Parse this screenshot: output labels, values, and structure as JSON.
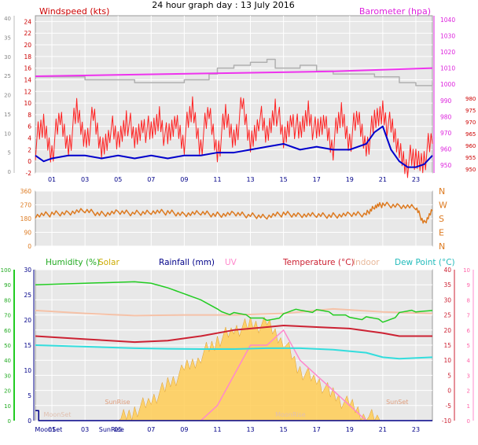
{
  "page": {
    "title": "24 hour graph day : 13 July 2016"
  },
  "colors": {
    "wind": "#ff2020",
    "gust": "#b0b0b0",
    "avgwind": "#0000cc",
    "baro": "#ee33ee",
    "direction": "#dd7a20",
    "humidity": "#22cc22",
    "solar": "#ffcc55",
    "rainfall": "#000088",
    "uv": "#ff88cc",
    "temperature": "#cc2233",
    "indoor": "#f5c2a8",
    "dewpoint": "#33dddd"
  },
  "x_ticks": [
    "01",
    "03",
    "05",
    "07",
    "09",
    "11",
    "13",
    "15",
    "17",
    "19",
    "21",
    "23"
  ],
  "chart_data": [
    {
      "type": "line",
      "panel": "wind",
      "labels": {
        "left": "Windspeed (kts)",
        "right": "Barometer (hpa)"
      },
      "left_ticks_red": [
        "-2",
        "0",
        "2",
        "4",
        "6",
        "8",
        "10",
        "12",
        "14",
        "16",
        "18",
        "20",
        "22",
        "24"
      ],
      "left_ticks_gray": [
        "0",
        "5",
        "10",
        "15",
        "20",
        "25",
        "30",
        "35",
        "40"
      ],
      "right_ticks": [
        "950",
        "960",
        "970",
        "980",
        "990",
        "1000",
        "1010",
        "1020",
        "1030",
        "1040"
      ],
      "right_ticks_red": [
        "950",
        "955",
        "960",
        "965",
        "970",
        "975",
        "980"
      ],
      "x_range": [
        0,
        24
      ],
      "ylim": [
        -2,
        25
      ],
      "series": [
        {
          "key": "gust",
          "hours": [
            0,
            3,
            6,
            9,
            10.5,
            11,
            12,
            13,
            14,
            14.5,
            15.5,
            16,
            17,
            18,
            19.5,
            20.5,
            22,
            23,
            24
          ],
          "values": [
            14.5,
            14,
            13.5,
            14,
            15,
            16,
            16.5,
            17,
            17.5,
            16,
            16,
            16.5,
            15.5,
            15,
            15,
            14.5,
            13.5,
            13,
            13.5
          ]
        },
        {
          "key": "wind",
          "hours": [
            0,
            0.5,
            1,
            1.5,
            2,
            2.5,
            3,
            3.5,
            4,
            4.5,
            5,
            5.5,
            6,
            6.5,
            7,
            7.5,
            8,
            8.5,
            9,
            9.5,
            10,
            10.5,
            11,
            11.5,
            12,
            12.5,
            13,
            13.5,
            14,
            14.5,
            15,
            15.5,
            16,
            16.5,
            17,
            17.5,
            18,
            18.5,
            19,
            19.5,
            20,
            20.5,
            21,
            21.5,
            22,
            22.5,
            23,
            23.5,
            24
          ],
          "values": [
            3,
            6,
            2,
            7,
            3,
            8,
            4,
            7,
            2,
            6,
            3,
            8,
            3,
            7,
            4,
            8,
            3,
            7,
            4,
            9,
            3,
            8,
            2,
            7,
            4,
            9,
            3,
            8,
            4,
            10,
            3,
            8,
            4,
            9,
            4,
            7,
            3,
            8,
            4,
            7,
            3,
            6,
            9,
            5,
            2,
            0,
            0,
            1,
            3
          ]
        },
        {
          "key": "avgwind",
          "hours": [
            0,
            0.5,
            1,
            2,
            3,
            4,
            5,
            6,
            7,
            8,
            9,
            10,
            11,
            12,
            13,
            14,
            15,
            16,
            17,
            18,
            19,
            20,
            20.5,
            21,
            21.5,
            22,
            22.5,
            23,
            23.5,
            24
          ],
          "values": [
            1,
            0,
            0.5,
            1,
            1,
            0.5,
            1,
            0.5,
            1,
            0.5,
            1,
            1,
            1.5,
            1.5,
            2,
            2.5,
            3,
            2,
            2.5,
            2,
            2,
            3,
            5,
            6,
            2,
            0,
            -1,
            -1,
            -0.5,
            1
          ]
        },
        {
          "key": "baro",
          "hours": [
            0,
            6,
            12,
            18,
            24
          ],
          "values_hpa": [
            1005,
            1006,
            1007,
            1008,
            1010
          ]
        }
      ]
    },
    {
      "type": "line",
      "panel": "direction",
      "left_ticks": [
        "0",
        "90",
        "180",
        "270",
        "360"
      ],
      "right_labels": [
        "N",
        "W",
        "S",
        "E",
        "N"
      ],
      "series": [
        {
          "key": "direction",
          "hours": [
            0,
            1,
            2,
            3,
            4,
            5,
            6,
            7,
            8,
            9,
            10,
            11,
            12,
            13,
            14,
            15,
            16,
            17,
            18,
            19,
            20,
            20.5,
            21,
            22,
            23,
            23.5,
            24
          ],
          "values": [
            200,
            210,
            220,
            230,
            210,
            220,
            215,
            225,
            220,
            210,
            215,
            205,
            210,
            200,
            195,
            210,
            205,
            200,
            200,
            205,
            210,
            260,
            270,
            265,
            250,
            150,
            230
          ]
        }
      ]
    },
    {
      "type": "line",
      "panel": "climate",
      "labels": {
        "humidity": "Humidity  (%)",
        "solar": "Solar",
        "rainfall": "Rainfall (mm)",
        "uv": "UV",
        "temperature": "Temperature  (°C)",
        "indoor": "Indoor",
        "dewpoint": "Dew Point  (°C)"
      },
      "humidity_ticks": [
        "0",
        "10",
        "20",
        "30",
        "40",
        "50",
        "60",
        "70",
        "80",
        "90",
        "100"
      ],
      "rain_ticks": [
        "0",
        "5",
        "10",
        "15",
        "20",
        "25",
        "30"
      ],
      "temp_ticks": [
        "-10",
        "-5",
        "0",
        "5",
        "10",
        "15",
        "20",
        "25",
        "30",
        "35",
        "40"
      ],
      "uv_ticks": [
        "0",
        "1",
        "2",
        "3",
        "4",
        "5",
        "6",
        "7",
        "8",
        "9",
        "10"
      ],
      "sun_labels": {
        "moonset": "MoonSet",
        "sunrise": "SunRise",
        "moonrise": "MoonRise",
        "sunset": "SunSet"
      },
      "x_extra_labels": [
        "MoonSet",
        "SunRise"
      ],
      "series": [
        {
          "key": "humidity",
          "hours": [
            0,
            3,
            6,
            7,
            8,
            9,
            10,
            11,
            12,
            13,
            14,
            15,
            16,
            17,
            18,
            19,
            20,
            21,
            22,
            23,
            24
          ],
          "values_pct": [
            90,
            91,
            92,
            91,
            88,
            84,
            80,
            74,
            70,
            68,
            68,
            70,
            74,
            72,
            70,
            70,
            68,
            66,
            70,
            72,
            73
          ]
        },
        {
          "key": "indoor",
          "hours": [
            0,
            3,
            6,
            9,
            12,
            15,
            18,
            21,
            24
          ],
          "values_c": [
            26.5,
            25.5,
            24.8,
            25,
            25,
            25.5,
            27,
            26,
            25.5
          ]
        },
        {
          "key": "temperature",
          "hours": [
            0,
            3,
            6,
            8,
            10,
            12,
            13,
            14,
            15,
            17,
            19,
            21,
            22,
            24
          ],
          "values_c": [
            18,
            17,
            16,
            16.5,
            18,
            20,
            20.5,
            21,
            21.5,
            21,
            20.5,
            19,
            18,
            18
          ]
        },
        {
          "key": "dewpoint",
          "hours": [
            0,
            3,
            6,
            8,
            10,
            12,
            14,
            16,
            18,
            20,
            21,
            22,
            24
          ],
          "values_c": [
            15,
            14.5,
            14,
            13.8,
            13.7,
            13.7,
            14,
            14,
            13.5,
            12.5,
            11,
            10.5,
            11
          ]
        },
        {
          "key": "solar",
          "hours": [
            5,
            6,
            7,
            8,
            9,
            10,
            11,
            12,
            13,
            14,
            15,
            16,
            17,
            18,
            19,
            20,
            21
          ],
          "values": [
            0,
            2,
            4,
            7,
            10,
            13,
            16,
            18,
            19,
            19,
            16,
            10,
            8,
            5,
            3,
            1,
            0
          ]
        },
        {
          "key": "uv",
          "hours": [
            10,
            11,
            12,
            13,
            14,
            15,
            16,
            17,
            18,
            19,
            20
          ],
          "values_index": [
            0,
            1,
            3,
            5,
            5,
            6,
            4,
            3,
            2,
            1,
            0
          ]
        },
        {
          "key": "rainfall",
          "hours": [
            0,
            0.2,
            0.2,
            24
          ],
          "values": [
            2,
            2,
            0,
            0
          ]
        }
      ]
    }
  ]
}
